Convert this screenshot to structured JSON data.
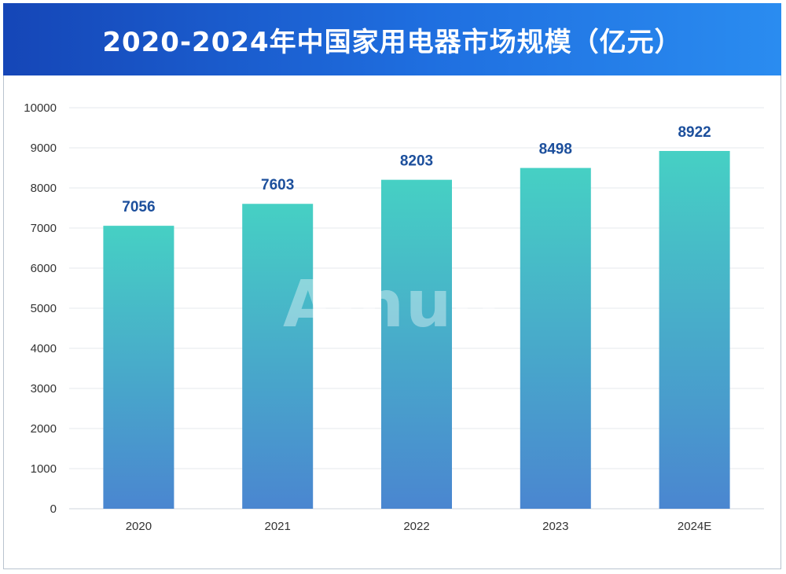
{
  "chart_data": {
    "type": "bar",
    "title": "2020-2024年中国家用电器市场规模（亿元）",
    "categories": [
      "2020",
      "2021",
      "2022",
      "2023",
      "2024E"
    ],
    "values": [
      7056,
      7603,
      8203,
      8498,
      8922
    ],
    "data_labels": [
      "7056",
      "7603",
      "8203",
      "8498",
      "8922"
    ],
    "ylim": [
      0,
      10000
    ],
    "yticks": [
      "0",
      "1000",
      "2000",
      "3000",
      "4000",
      "5000",
      "6000",
      "7000",
      "8000",
      "9000",
      "10000"
    ],
    "xlabel": "",
    "ylabel": "",
    "grid": true,
    "legend": "none",
    "colors": {
      "bar_top": "#46d0c4",
      "bar_bottom": "#4a86d0",
      "data_label": "#1c4f9c",
      "header_left": "#1546b7",
      "header_right": "#2a8cf0"
    }
  },
  "watermark": "Ainuo"
}
